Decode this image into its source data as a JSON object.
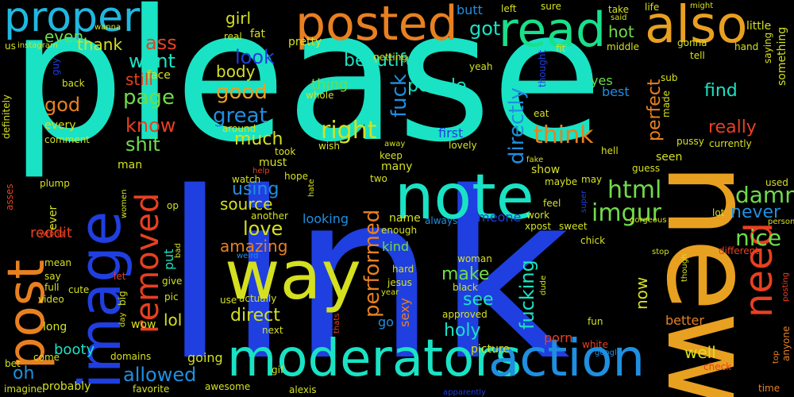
{
  "colors": {
    "background": "#000000",
    "teal": "#19e3c4",
    "blue": "#1f3fe0",
    "orange": "#e8a020",
    "green": "#6fdc4a",
    "red": "#e84020"
  },
  "words": [
    "please",
    "link",
    "new",
    "note",
    "image",
    "way",
    "post",
    "moderators",
    "action",
    "posted",
    "read",
    "also",
    "proper",
    "removed",
    "need",
    "imgur",
    "html",
    "damn",
    "nice",
    "never",
    "right",
    "think",
    "directly",
    "performed",
    "fuck",
    "people",
    "find",
    "really",
    "perfect",
    "best",
    "yes",
    "love",
    "amazing",
    "source",
    "using",
    "great",
    "good",
    "much",
    "look",
    "want",
    "ass",
    "got",
    "beautiful",
    "girl",
    "hot",
    "butt",
    "even",
    "thank",
    "god",
    "know",
    "shit",
    "still",
    "page",
    "body",
    "thing",
    "first",
    "fucking",
    "make",
    "see",
    "holy",
    "lol",
    "direct",
    "allowed",
    "oh",
    "reddit",
    "booty",
    "kind",
    "name",
    "looking",
    "someone",
    "porn",
    "well",
    "better",
    "now",
    "go",
    "sexy",
    "put",
    "many",
    "show",
    "seen",
    "used",
    "lot",
    "time",
    "anyone",
    "little",
    "something",
    "sure",
    "left",
    "take",
    "life",
    "might",
    "said",
    "saying",
    "gonna",
    "tell",
    "sub",
    "made",
    "middle",
    "fit",
    "thought",
    "yeah",
    "getting",
    "pretty",
    "fat",
    "face",
    "real",
    "us",
    "instagram",
    "wanna",
    "guy",
    "back",
    "definitely",
    "every",
    "comment",
    "man",
    "must",
    "around",
    "took",
    "wish",
    "keep",
    "away",
    "lovely",
    "pussy",
    "currently",
    "hell",
    "fake",
    "guess",
    "may",
    "maybe",
    "feel",
    "work",
    "xpost",
    "sweet",
    "super",
    "gorgeous",
    "person",
    "different",
    "stop",
    "though",
    "posting",
    "chick",
    "fun",
    "white",
    "google",
    "check",
    "top",
    "apparently",
    "alexis",
    "awesome",
    "favorite",
    "imagine",
    "bet",
    "come",
    "probably",
    "domains",
    "gif",
    "picture",
    "going",
    "wow",
    "day",
    "big",
    "pic",
    "give",
    "let",
    "bad",
    "op",
    "plump",
    "women",
    "asses",
    "ever",
    "wrong",
    "mean",
    "say",
    "full",
    "video",
    "cute",
    "long",
    "actually",
    "use",
    "weird",
    "another",
    "enough",
    "always",
    "hard",
    "jesus",
    "black",
    "year",
    "dude",
    "approved",
    "thats",
    "woman",
    "watch",
    "hope",
    "help",
    "hate",
    "two",
    "eat",
    "whole",
    "next",
    "hand"
  ]
}
